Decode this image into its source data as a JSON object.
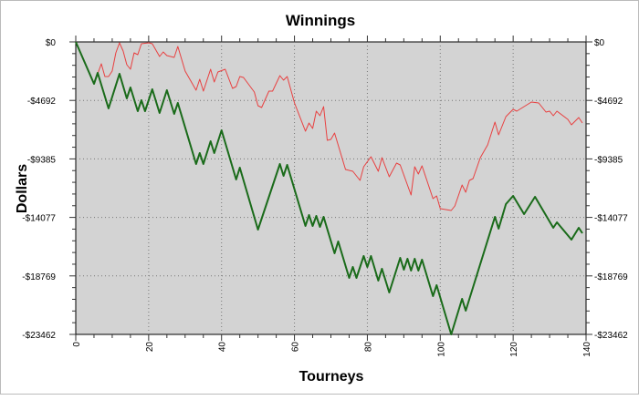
{
  "chart_data": {
    "type": "line",
    "title": "Winnings",
    "xlabel": "Tourneys",
    "ylabel": "Dollars",
    "xlim": [
      0,
      140
    ],
    "ylim": [
      -23462,
      0
    ],
    "x_ticks": [
      0,
      20,
      40,
      60,
      80,
      100,
      120,
      140
    ],
    "x_tick_labels": [
      "0",
      "20",
      "40",
      "60",
      "80",
      "100",
      "120",
      "140"
    ],
    "y_ticks": [
      0,
      -4692,
      -9385,
      -14077,
      -18769,
      -23462
    ],
    "y_tick_labels": [
      "$0",
      "-$4692",
      "-$9385",
      "-$14077",
      "-$18769",
      "-$23462"
    ],
    "grid": true,
    "background": "#d3d3d3",
    "series": [
      {
        "color": "#e84040",
        "points": [
          [
            0,
            0
          ],
          [
            5,
            -3362
          ],
          [
            7,
            -1754
          ],
          [
            8,
            -2777
          ],
          [
            9,
            -2777
          ],
          [
            10,
            -2339
          ],
          [
            11,
            -877
          ],
          [
            12,
            -73
          ],
          [
            13,
            -731
          ],
          [
            14,
            -1827
          ],
          [
            15,
            -2193
          ],
          [
            16,
            -877
          ],
          [
            17,
            -1023
          ],
          [
            18,
            -146
          ],
          [
            20,
            -73
          ],
          [
            21,
            -146
          ],
          [
            23,
            -1169
          ],
          [
            24,
            -804
          ],
          [
            25,
            -1096
          ],
          [
            27,
            -1243
          ],
          [
            28,
            -365
          ],
          [
            30,
            -2339
          ],
          [
            33,
            -3874
          ],
          [
            34,
            -2997
          ],
          [
            35,
            -3947
          ],
          [
            37,
            -2193
          ],
          [
            38,
            -3216
          ],
          [
            39,
            -2412
          ],
          [
            41,
            -2193
          ],
          [
            43,
            -3728
          ],
          [
            44,
            -3581
          ],
          [
            45,
            -2777
          ],
          [
            46,
            -2851
          ],
          [
            49,
            -4020
          ],
          [
            50,
            -5116
          ],
          [
            51,
            -5262
          ],
          [
            53,
            -3947
          ],
          [
            54,
            -3947
          ],
          [
            56,
            -2704
          ],
          [
            57,
            -3070
          ],
          [
            58,
            -2777
          ],
          [
            60,
            -4897
          ],
          [
            63,
            -7163
          ],
          [
            64,
            -6505
          ],
          [
            65,
            -6944
          ],
          [
            66,
            -5555
          ],
          [
            67,
            -5920
          ],
          [
            68,
            -5189
          ],
          [
            69,
            -7894
          ],
          [
            70,
            -7821
          ],
          [
            71,
            -7309
          ],
          [
            74,
            -10233
          ],
          [
            76,
            -10379
          ],
          [
            78,
            -11110
          ],
          [
            79,
            -10013
          ],
          [
            81,
            -9209
          ],
          [
            83,
            -10379
          ],
          [
            84,
            -9282
          ],
          [
            86,
            -10817
          ],
          [
            88,
            -9721
          ],
          [
            89,
            -9867
          ],
          [
            92,
            -12279
          ],
          [
            93,
            -10013
          ],
          [
            94,
            -10598
          ],
          [
            95,
            -9940
          ],
          [
            98,
            -12571
          ],
          [
            99,
            -12352
          ],
          [
            100,
            -13375
          ],
          [
            103,
            -13522
          ],
          [
            104,
            -13156
          ],
          [
            106,
            -11475
          ],
          [
            107,
            -12060
          ],
          [
            108,
            -11110
          ],
          [
            109,
            -10964
          ],
          [
            111,
            -9282
          ],
          [
            113,
            -8259
          ],
          [
            115,
            -6432
          ],
          [
            116,
            -7455
          ],
          [
            118,
            -5993
          ],
          [
            120,
            -5409
          ],
          [
            121,
            -5555
          ],
          [
            125,
            -4824
          ],
          [
            127,
            -4897
          ],
          [
            129,
            -5628
          ],
          [
            130,
            -5555
          ],
          [
            131,
            -5920
          ],
          [
            132,
            -5555
          ],
          [
            135,
            -6213
          ],
          [
            136,
            -6651
          ],
          [
            138,
            -6066
          ],
          [
            139,
            -6505
          ]
        ]
      },
      {
        "color": "#1a6b1a",
        "points": [
          [
            0,
            0
          ],
          [
            5,
            -3362
          ],
          [
            6,
            -2485
          ],
          [
            9,
            -5336
          ],
          [
            12,
            -2558
          ],
          [
            14,
            -4532
          ],
          [
            15,
            -3655
          ],
          [
            17,
            -5555
          ],
          [
            18,
            -4678
          ],
          [
            19,
            -5555
          ],
          [
            21,
            -3801
          ],
          [
            23,
            -5701
          ],
          [
            25,
            -3874
          ],
          [
            27,
            -5774
          ],
          [
            28,
            -4897
          ],
          [
            33,
            -9794
          ],
          [
            34,
            -8917
          ],
          [
            35,
            -9794
          ],
          [
            37,
            -7967
          ],
          [
            38,
            -8917
          ],
          [
            40,
            -7090
          ],
          [
            44,
            -11037
          ],
          [
            45,
            -10086
          ],
          [
            50,
            -15057
          ],
          [
            56,
            -9794
          ],
          [
            57,
            -10744
          ],
          [
            58,
            -9867
          ],
          [
            63,
            -14764
          ],
          [
            64,
            -13887
          ],
          [
            65,
            -14764
          ],
          [
            66,
            -13960
          ],
          [
            67,
            -14837
          ],
          [
            68,
            -14033
          ],
          [
            71,
            -16957
          ],
          [
            72,
            -16007
          ],
          [
            75,
            -18930
          ],
          [
            76,
            -18053
          ],
          [
            77,
            -18930
          ],
          [
            79,
            -17176
          ],
          [
            80,
            -18053
          ],
          [
            81,
            -17176
          ],
          [
            83,
            -19150
          ],
          [
            84,
            -18199
          ],
          [
            86,
            -20100
          ],
          [
            89,
            -17322
          ],
          [
            90,
            -18273
          ],
          [
            91,
            -17395
          ],
          [
            92,
            -18346
          ],
          [
            93,
            -17395
          ],
          [
            94,
            -18346
          ],
          [
            95,
            -17468
          ],
          [
            98,
            -20392
          ],
          [
            99,
            -19515
          ],
          [
            103,
            -23462
          ],
          [
            106,
            -20611
          ],
          [
            107,
            -21562
          ],
          [
            115,
            -14033
          ],
          [
            116,
            -14983
          ],
          [
            118,
            -13010
          ],
          [
            120,
            -12352
          ],
          [
            123,
            -13814
          ],
          [
            126,
            -12425
          ],
          [
            131,
            -14910
          ],
          [
            132,
            -14472
          ],
          [
            136,
            -15861
          ],
          [
            138,
            -14910
          ],
          [
            139,
            -15349
          ]
        ]
      }
    ]
  }
}
